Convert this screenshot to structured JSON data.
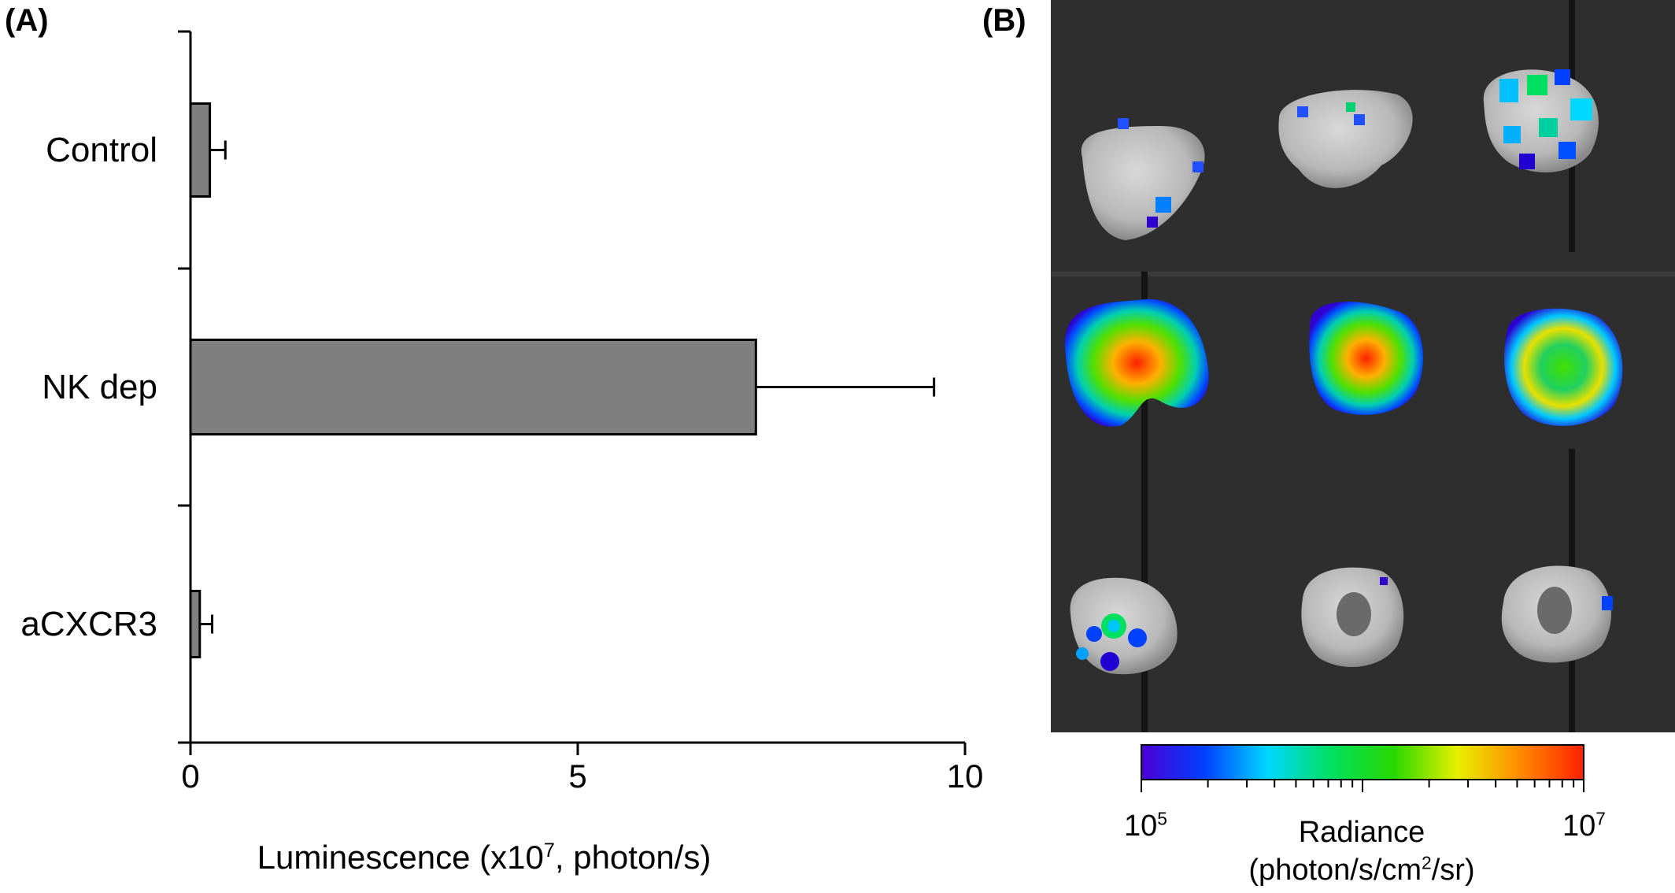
{
  "panels": {
    "a_label": "(A)",
    "b_label": "(B)"
  },
  "chart_data": {
    "type": "bar",
    "orientation": "horizontal",
    "categories": [
      "Control",
      "NK dep",
      "aCXCR3"
    ],
    "values": [
      0.25,
      7.3,
      0.12
    ],
    "errors": [
      0.45,
      9.6,
      0.28
    ],
    "error_bars": "upper error bar ends, in data units",
    "xlabel_prefix": "Luminescence (x10",
    "xlabel_sup": "7",
    "xlabel_suffix": ", photon/s)",
    "ylabel": "",
    "xlim": [
      0,
      10
    ],
    "xticks": [
      0,
      5,
      10
    ],
    "bar_color": "#7f7f7f",
    "grid": false
  },
  "image_panel": {
    "description_colorbar": {
      "title_line1": "Radiance",
      "unit_prefix": "(photon/s/cm",
      "unit_sup": "2",
      "unit_suffix": "/sr)",
      "min_base": "10",
      "min_exp": "5",
      "max_base": "10",
      "max_exp": "7",
      "colors": [
        "#4b00d6",
        "#0040ff",
        "#00d8ff",
        "#00e060",
        "#2ad800",
        "#e8f000",
        "#ff8a00",
        "#ff2000"
      ]
    }
  }
}
